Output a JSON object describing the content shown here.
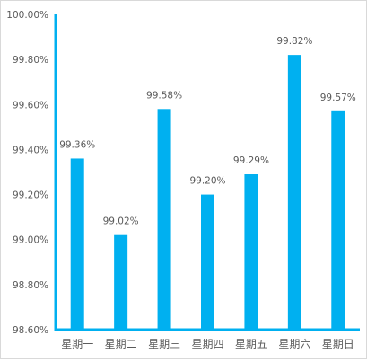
{
  "chart_data": {
    "type": "bar",
    "title": "",
    "xlabel": "",
    "ylabel": "",
    "categories": [
      "星期一",
      "星期二",
      "星期三",
      "星期四",
      "星期五",
      "星期六",
      "星期日"
    ],
    "values": [
      99.36,
      99.02,
      99.58,
      99.2,
      99.29,
      99.82,
      99.57
    ],
    "value_labels": [
      "99.36%",
      "99.02%",
      "99.58%",
      "99.20%",
      "99.29%",
      "99.82%",
      "99.57%"
    ],
    "ylim": [
      98.6,
      100.0
    ],
    "yticks": [
      98.6,
      98.8,
      99.0,
      99.2,
      99.4,
      99.6,
      99.8,
      100.0
    ],
    "ytick_labels": [
      "98.60%",
      "98.80%",
      "99.00%",
      "99.20%",
      "99.40%",
      "99.60%",
      "99.80%",
      "100.00%"
    ],
    "grid": false,
    "legend": "none",
    "colors": {
      "bar": "#00b0f0",
      "axis": "#00b0f0",
      "text": "#595959",
      "border": "#d9d9d9"
    }
  }
}
